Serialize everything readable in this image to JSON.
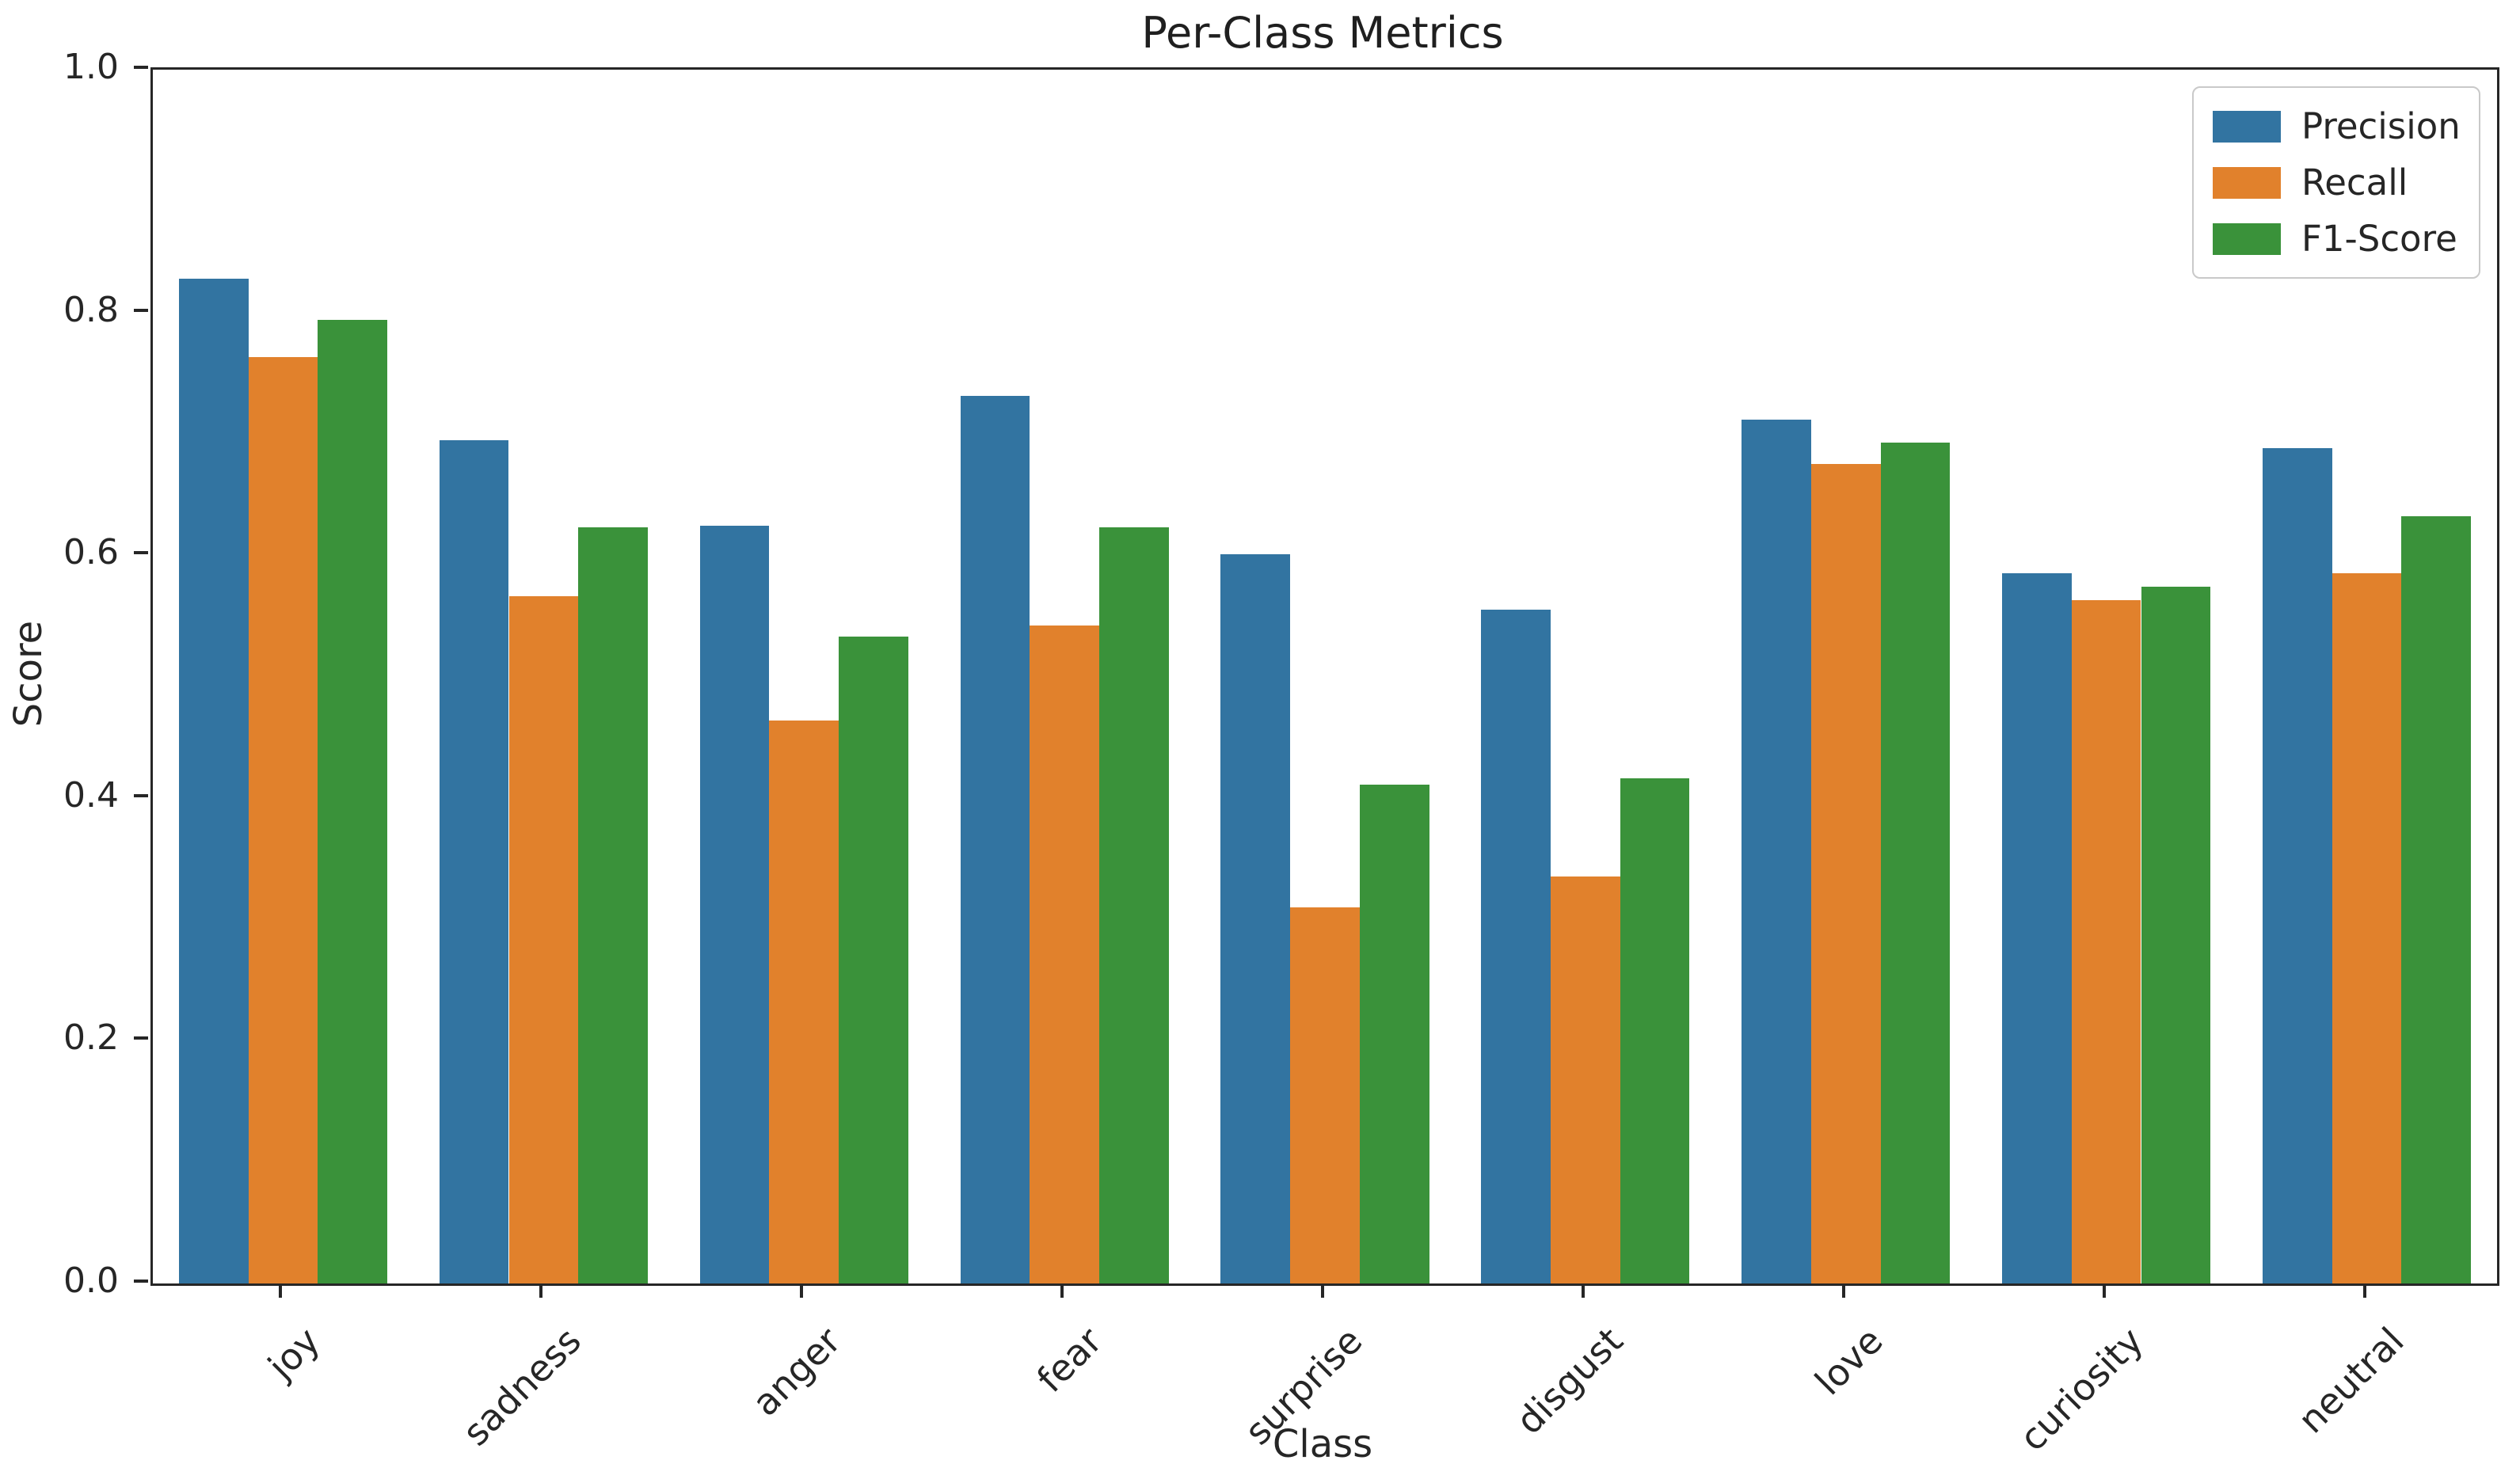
{
  "chart_data": {
    "type": "bar",
    "title": "Per-Class Metrics",
    "xlabel": "Class",
    "ylabel": "Score",
    "categories": [
      "joy",
      "sadness",
      "anger",
      "fear",
      "surprise",
      "disgust",
      "love",
      "curiosity",
      "neutral"
    ],
    "series": [
      {
        "name": "Precision",
        "color": "#3274a1",
        "values": [
          0.828,
          0.695,
          0.624,
          0.731,
          0.601,
          0.555,
          0.712,
          0.585,
          0.688
        ]
      },
      {
        "name": "Recall",
        "color": "#e1812c",
        "values": [
          0.763,
          0.566,
          0.464,
          0.542,
          0.31,
          0.335,
          0.675,
          0.563,
          0.585
        ]
      },
      {
        "name": "F1-Score",
        "color": "#3a923a",
        "values": [
          0.794,
          0.623,
          0.533,
          0.623,
          0.411,
          0.416,
          0.693,
          0.574,
          0.632
        ]
      }
    ],
    "ylim": [
      0,
      1
    ],
    "yticks": [
      "0.0",
      "0.2",
      "0.4",
      "0.6",
      "0.8",
      "1.0"
    ],
    "legend_position": "upper right",
    "grid": false,
    "bar_group_fraction": 0.8
  }
}
